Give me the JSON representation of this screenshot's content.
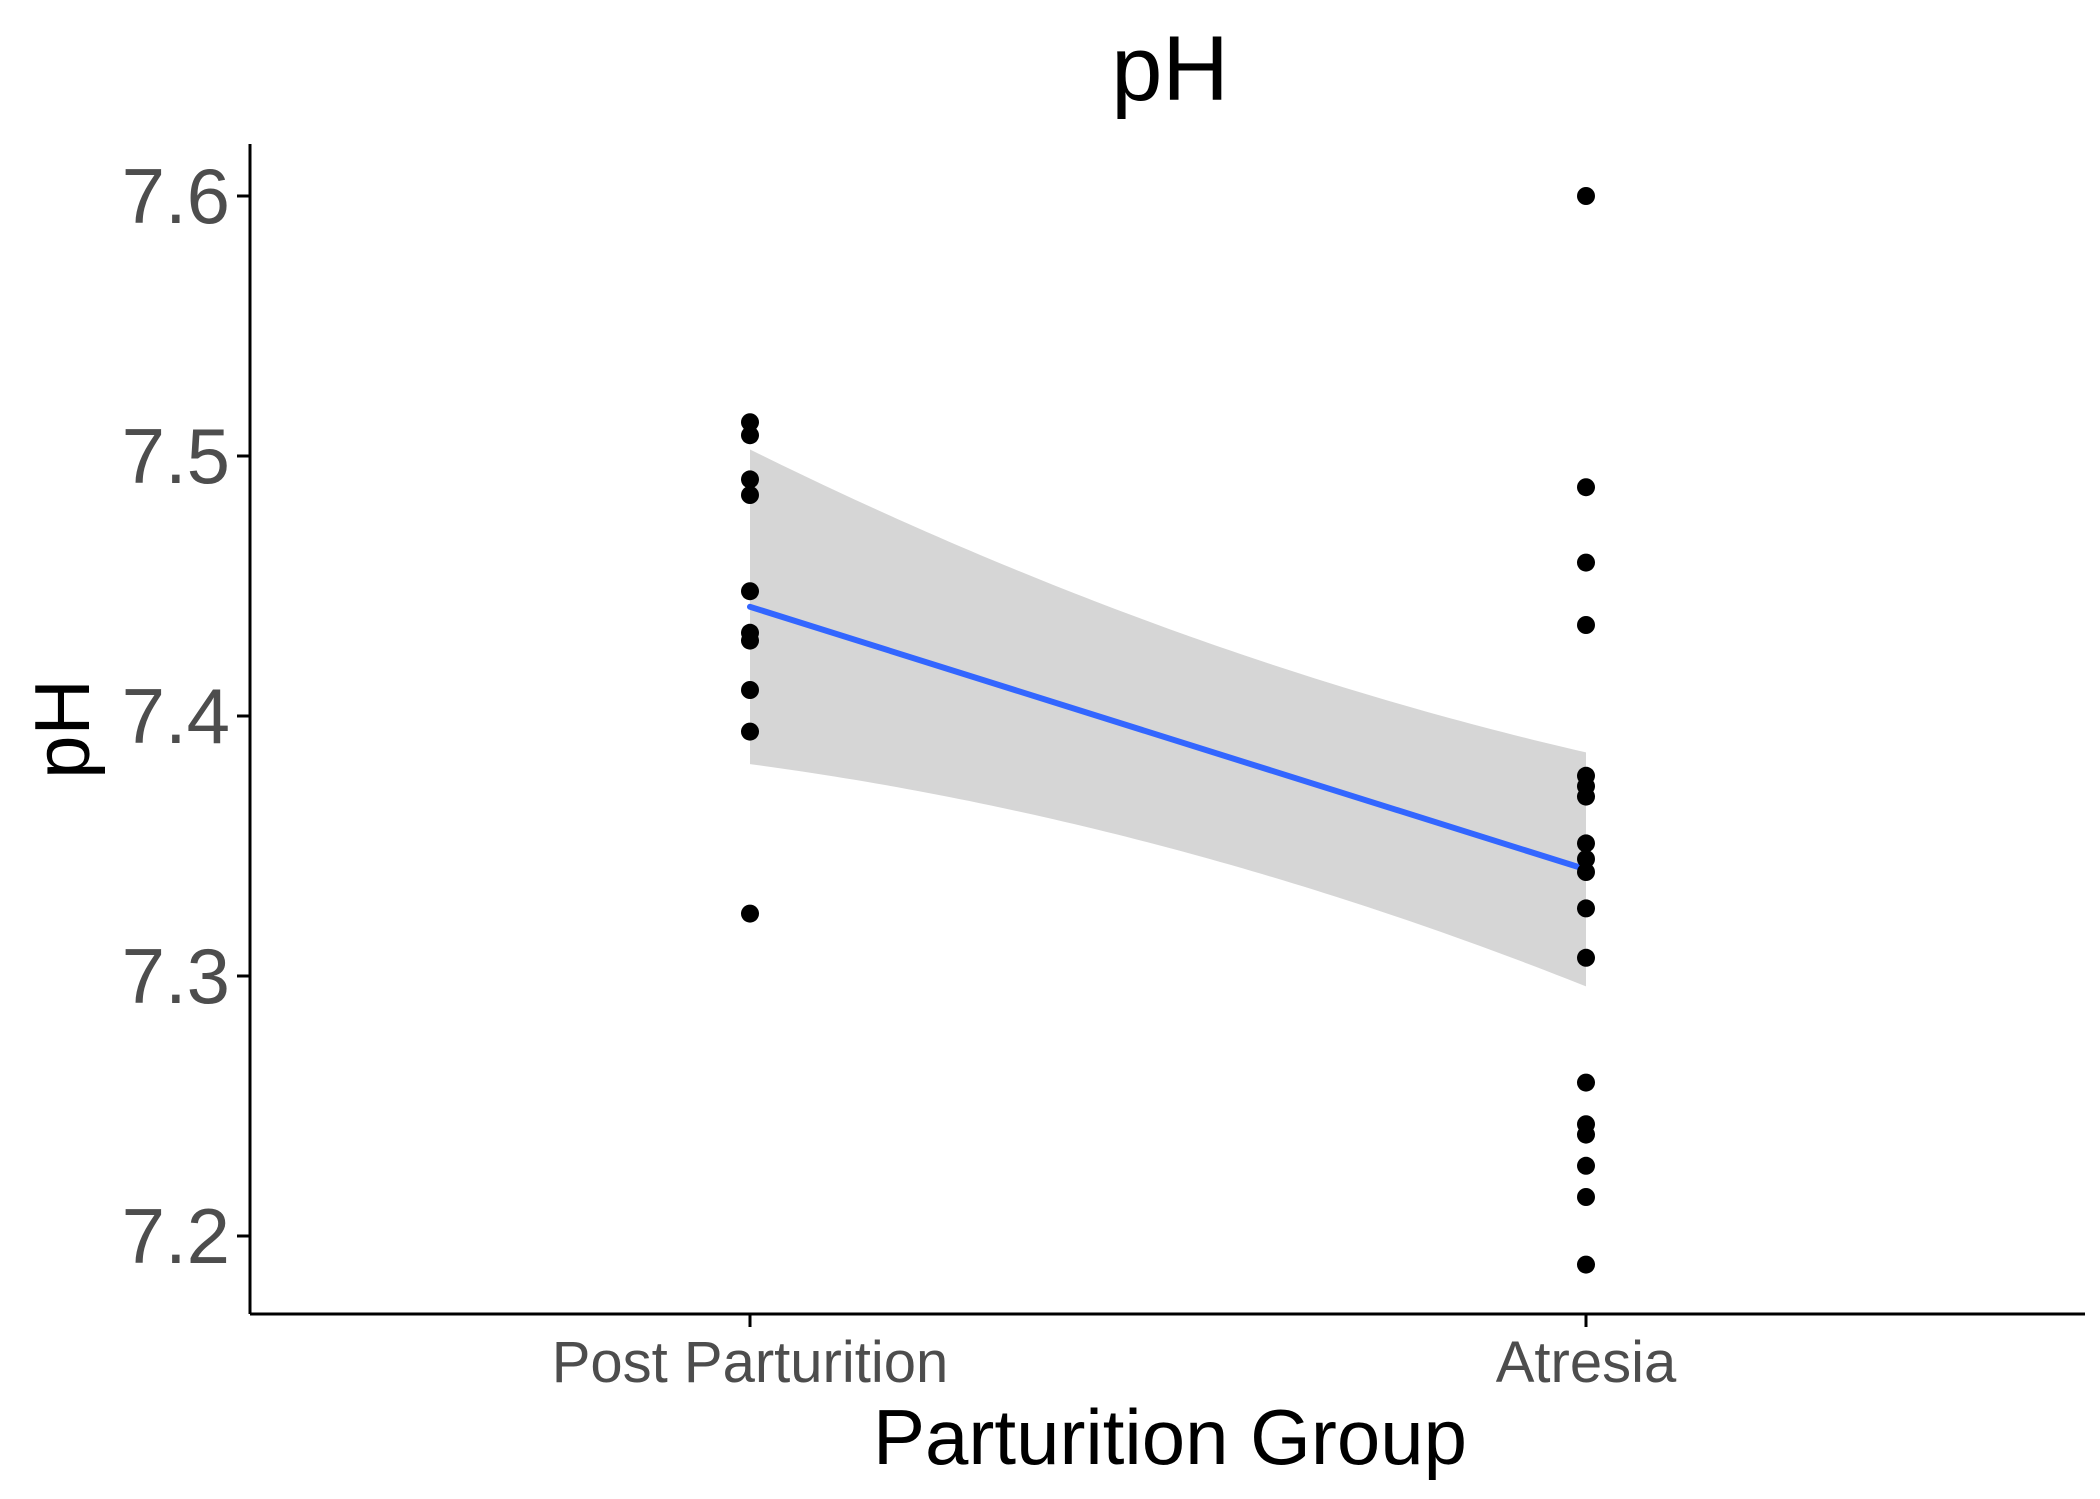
{
  "chart_data": {
    "type": "scatter",
    "title": "pH",
    "xlabel": "Parturition Group",
    "ylabel": "pH",
    "categories": [
      "Post Parturition",
      "Atresia"
    ],
    "ylim": [
      7.17,
      7.62
    ],
    "yticks": [
      7.2,
      7.3,
      7.4,
      7.5,
      7.6
    ],
    "yticks_labels": [
      "7.2",
      "7.3",
      "7.4",
      "7.5",
      "7.6"
    ],
    "grid": false,
    "legend": "none",
    "series": [
      {
        "category": "Post Parturition",
        "values": [
          7.513,
          7.508,
          7.491,
          7.485,
          7.448,
          7.432,
          7.429,
          7.41,
          7.394,
          7.324
        ]
      },
      {
        "category": "Atresia",
        "values": [
          7.6,
          7.488,
          7.459,
          7.435,
          7.377,
          7.373,
          7.369,
          7.351,
          7.345,
          7.34,
          7.326,
          7.307,
          7.259,
          7.243,
          7.239,
          7.227,
          7.215,
          7.189
        ]
      }
    ],
    "fit_line": {
      "method": "linear",
      "start": 7.442,
      "end": 7.341,
      "ci_start": [
        7.382,
        7.503
      ],
      "ci_end": [
        7.297,
        7.387
      ]
    },
    "colors": {
      "points": "#000000",
      "fit_line": "#3366ff",
      "ci_band": "#d6d6d6",
      "axis": "#000000",
      "tick_label": "#4d4d4d"
    }
  }
}
